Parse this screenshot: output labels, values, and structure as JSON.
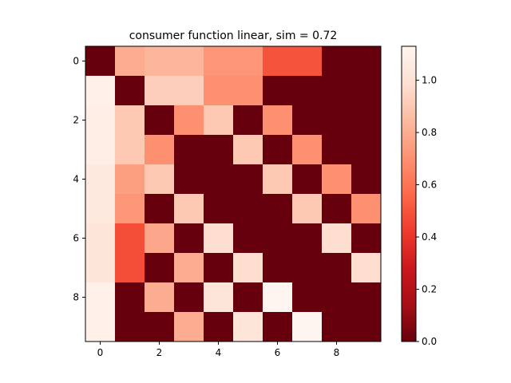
{
  "chart_data": {
    "type": "heatmap",
    "title": "consumer function linear, sim = 0.72",
    "xlabel": "",
    "ylabel": "",
    "colormap": "Reds_r",
    "vmin": 0.0,
    "vmax": 1.13,
    "x_ticks": [
      "0",
      "2",
      "4",
      "6",
      "8"
    ],
    "y_ticks": [
      "0",
      "2",
      "4",
      "6",
      "8"
    ],
    "colorbar_ticks": [
      "0.0",
      "0.2",
      "0.4",
      "0.6",
      "0.8",
      "1.0"
    ],
    "matrix": [
      [
        0.0,
        0.8,
        0.83,
        0.83,
        0.72,
        0.72,
        0.5,
        0.5,
        0.0,
        0.0
      ],
      [
        1.1,
        0.0,
        0.92,
        0.92,
        0.7,
        0.7,
        0.0,
        0.0,
        0.0,
        0.0
      ],
      [
        1.08,
        0.9,
        0.0,
        0.7,
        0.9,
        0.0,
        0.7,
        0.0,
        0.0,
        0.0
      ],
      [
        1.08,
        0.9,
        0.7,
        0.0,
        0.0,
        0.9,
        0.0,
        0.7,
        0.0,
        0.0
      ],
      [
        1.05,
        0.75,
        0.9,
        0.0,
        0.0,
        0.0,
        0.9,
        0.0,
        0.7,
        0.0
      ],
      [
        1.05,
        0.72,
        0.0,
        0.9,
        0.0,
        0.0,
        0.0,
        0.9,
        0.0,
        0.7
      ],
      [
        1.02,
        0.48,
        0.78,
        0.0,
        0.98,
        0.0,
        0.0,
        0.0,
        0.98,
        0.0
      ],
      [
        1.02,
        0.48,
        0.0,
        0.8,
        0.0,
        0.98,
        0.0,
        0.0,
        0.0,
        0.98
      ],
      [
        1.1,
        0.0,
        0.8,
        0.0,
        1.02,
        0.0,
        1.13,
        0.0,
        0.0,
        0.0
      ],
      [
        1.1,
        0.0,
        0.0,
        0.8,
        0.0,
        1.02,
        0.0,
        1.13,
        0.0,
        0.0
      ]
    ]
  }
}
